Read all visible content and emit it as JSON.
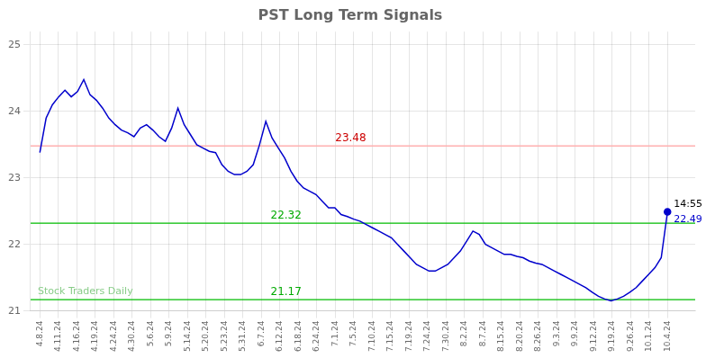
{
  "chart_data": {
    "type": "line",
    "title": "PST Long Term Signals",
    "color": "#0000cc",
    "x": [
      0,
      0.34,
      0.68,
      1.02,
      1.36,
      1.7,
      2.04,
      2.38,
      2.72,
      3.06,
      3.4,
      3.74,
      4.08,
      4.42,
      4.76,
      5.1,
      5.44,
      5.78,
      6.12,
      6.46,
      6.8,
      7.14,
      7.48,
      7.82,
      8.16,
      8.5,
      8.84,
      9.18,
      9.52,
      9.86,
      10.2,
      10.54,
      10.88,
      11.22,
      11.56,
      11.9,
      12.24,
      12.58,
      12.92,
      13.26,
      13.6,
      13.94,
      14.28,
      14.62,
      14.96,
      15.3,
      15.64,
      15.98,
      16.32,
      16.66,
      17,
      17.34,
      17.68,
      18.02,
      18.36,
      18.7,
      19.04,
      19.38,
      19.72,
      20.06,
      20.4,
      20.74,
      21.08,
      21.42,
      21.76,
      22.1,
      22.44,
      22.78,
      23.12,
      23.46,
      23.8,
      24.14,
      24.48,
      24.82,
      25.16,
      25.5,
      25.84,
      26.18,
      26.52,
      26.86,
      27.2,
      27.54,
      27.88,
      28.22,
      28.56,
      28.9,
      29.24,
      29.58,
      29.92,
      30.26,
      30.6,
      30.94,
      31.28,
      31.62,
      31.96,
      32.3,
      32.64,
      32.98,
      33.32,
      33.66,
      34
    ],
    "values": [
      23.38,
      23.9,
      24.1,
      24.22,
      24.32,
      24.22,
      24.3,
      24.48,
      24.25,
      24.17,
      24.05,
      23.9,
      23.8,
      23.72,
      23.68,
      23.62,
      23.75,
      23.8,
      23.72,
      23.62,
      23.55,
      23.75,
      24.05,
      23.8,
      23.65,
      23.5,
      23.45,
      23.4,
      23.38,
      23.2,
      23.1,
      23.05,
      23.05,
      23.1,
      23.2,
      23.5,
      23.85,
      23.6,
      23.45,
      23.3,
      23.1,
      22.95,
      22.85,
      22.8,
      22.75,
      22.65,
      22.55,
      22.55,
      22.45,
      22.42,
      22.38,
      22.35,
      22.3,
      22.25,
      22.2,
      22.15,
      22.1,
      22.0,
      21.9,
      21.8,
      21.7,
      21.65,
      21.6,
      21.6,
      21.65,
      21.7,
      21.8,
      21.9,
      22.05,
      22.2,
      22.15,
      22.0,
      21.95,
      21.9,
      21.85,
      21.85,
      21.82,
      21.8,
      21.75,
      21.72,
      21.7,
      21.65,
      21.6,
      21.55,
      21.5,
      21.45,
      21.4,
      21.35,
      21.28,
      21.22,
      21.18,
      21.15,
      21.18,
      21.22,
      21.28,
      21.35,
      21.45,
      21.55,
      21.65,
      21.8,
      22.49
    ],
    "xlim": [
      -0.5,
      35.5
    ],
    "xticks": [
      {
        "value": 0,
        "label": "4.8.24"
      },
      {
        "value": 1,
        "label": "4.11.24"
      },
      {
        "value": 2,
        "label": "4.16.24"
      },
      {
        "value": 3,
        "label": "4.19.24"
      },
      {
        "value": 4,
        "label": "4.24.24"
      },
      {
        "value": 5,
        "label": "4.30.24"
      },
      {
        "value": 6,
        "label": "5.6.24"
      },
      {
        "value": 7,
        "label": "5.9.24"
      },
      {
        "value": 8,
        "label": "5.14.24"
      },
      {
        "value": 9,
        "label": "5.20.24"
      },
      {
        "value": 10,
        "label": "5.23.24"
      },
      {
        "value": 11,
        "label": "5.31.24"
      },
      {
        "value": 12,
        "label": "6.7.24"
      },
      {
        "value": 13,
        "label": "6.12.24"
      },
      {
        "value": 14,
        "label": "6.18.24"
      },
      {
        "value": 15,
        "label": "6.24.24"
      },
      {
        "value": 16,
        "label": "7.1.24"
      },
      {
        "value": 17,
        "label": "7.5.24"
      },
      {
        "value": 18,
        "label": "7.10.24"
      },
      {
        "value": 19,
        "label": "7.15.24"
      },
      {
        "value": 20,
        "label": "7.19.24"
      },
      {
        "value": 21,
        "label": "7.24.24"
      },
      {
        "value": 22,
        "label": "7.30.24"
      },
      {
        "value": 23,
        "label": "8.2.24"
      },
      {
        "value": 24,
        "label": "8.7.24"
      },
      {
        "value": 25,
        "label": "8.15.24"
      },
      {
        "value": 26,
        "label": "8.20.24"
      },
      {
        "value": 27,
        "label": "8.26.24"
      },
      {
        "value": 28,
        "label": "9.3.24"
      },
      {
        "value": 29,
        "label": "9.9.24"
      },
      {
        "value": 30,
        "label": "9.12.24"
      },
      {
        "value": 31,
        "label": "9.19.24"
      },
      {
        "value": 32,
        "label": "9.26.24"
      },
      {
        "value": 33,
        "label": "10.1.24"
      },
      {
        "value": 34,
        "label": "10.4.24"
      }
    ],
    "ylim": [
      21,
      25.2
    ],
    "yticks": [
      21,
      22,
      23,
      24,
      25
    ],
    "grid": true,
    "hlines": [
      {
        "value": 23.48,
        "color": "#ffb0b0",
        "label": "23.48",
        "label_color": "#cc0000"
      },
      {
        "value": 22.32,
        "color": "#00bb00",
        "label": "22.32",
        "label_color": "#00aa00"
      },
      {
        "value": 21.17,
        "color": "#00bb00",
        "label": "21.17",
        "label_color": "#00aa00"
      }
    ],
    "last_point_labels": [
      {
        "text": "14:55"
      },
      {
        "text": "22.49",
        "color": "#0000cc"
      }
    ],
    "watermark": {
      "text": "Stock Traders Daily",
      "color": "#88cc88"
    }
  }
}
